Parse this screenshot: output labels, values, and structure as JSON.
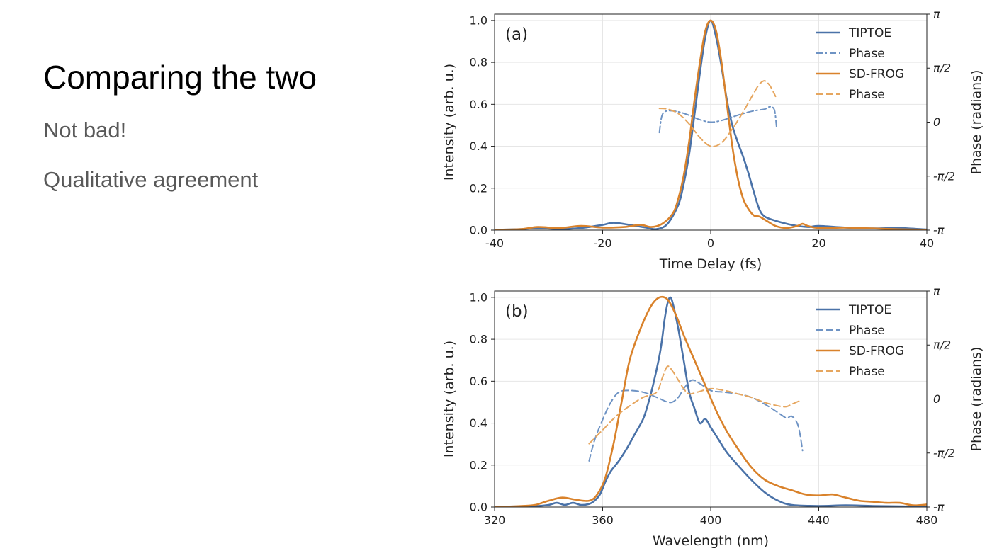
{
  "slide": {
    "title": "Comparing the two",
    "bullets": [
      "Not bad!",
      "Qualitative agreement"
    ]
  },
  "colors": {
    "tiptoe": "#4a72a8",
    "tiptoe_phase": "#6e93c4",
    "sdfrog": "#d9822b",
    "sdfrog_phase": "#e6a65f",
    "grid": "#e6e6e6"
  },
  "chart_data": [
    {
      "type": "line",
      "panel_label": "(a)",
      "xlabel": "Time Delay (fs)",
      "ylabel": "Intensity (arb. u.)",
      "y2label": "Phase (radians)",
      "xlim": [
        -40,
        40
      ],
      "ylim": [
        0,
        1.03
      ],
      "y2lim": [
        -3.14159,
        3.14159
      ],
      "xticks": [
        -40,
        -20,
        0,
        20,
        40
      ],
      "xtick_labels": [
        "-40",
        "-20",
        "0",
        "20",
        "40"
      ],
      "yticks": [
        0,
        0.2,
        0.4,
        0.6,
        0.8,
        1.0
      ],
      "ytick_labels": [
        "0.0",
        "0.2",
        "0.4",
        "0.6",
        "0.8",
        "1.0"
      ],
      "y2ticks": [
        -3.14159,
        -1.5708,
        0,
        1.5708,
        3.14159
      ],
      "y2tick_labels": [
        "-π",
        "-π/2",
        "0",
        "π/2",
        "π"
      ],
      "grid": true,
      "legend": "top-right",
      "series": [
        {
          "name": "TIPTOE",
          "axis": "left",
          "style": "solid",
          "color_key": "tiptoe",
          "x": [
            -40,
            -35,
            -32,
            -28,
            -24,
            -20,
            -18,
            -15,
            -12,
            -10,
            -8,
            -6,
            -5,
            -4,
            -3,
            -2,
            -1,
            0,
            1,
            2,
            3,
            4,
            5,
            6,
            7,
            8,
            9,
            10,
            12,
            15,
            18,
            20,
            25,
            30,
            35,
            40
          ],
          "y": [
            0.002,
            0.005,
            0.01,
            0.005,
            0.01,
            0.025,
            0.035,
            0.025,
            0.012,
            0.005,
            0.03,
            0.12,
            0.22,
            0.36,
            0.55,
            0.75,
            0.92,
            1.0,
            0.92,
            0.78,
            0.62,
            0.5,
            0.42,
            0.35,
            0.27,
            0.18,
            0.1,
            0.065,
            0.045,
            0.025,
            0.015,
            0.02,
            0.012,
            0.008,
            0.01,
            0.003
          ]
        },
        {
          "name": "Phase",
          "axis": "right",
          "style": "dashdot",
          "color_key": "tiptoe_phase",
          "x": [
            -9.5,
            -9,
            -8,
            -6,
            -4,
            -2,
            0,
            2,
            4,
            6,
            8,
            10,
            11,
            11.8,
            12.2
          ],
          "y": [
            -0.3,
            0.2,
            0.33,
            0.3,
            0.2,
            0.07,
            0,
            0.05,
            0.15,
            0.25,
            0.33,
            0.38,
            0.45,
            0.35,
            -0.15
          ]
        },
        {
          "name": "SD-FROG",
          "axis": "left",
          "style": "solid",
          "color_key": "sdfrog",
          "x": [
            -40,
            -35,
            -32,
            -28,
            -24,
            -20,
            -16,
            -13,
            -11,
            -9,
            -7,
            -6,
            -5,
            -4,
            -3,
            -2,
            -1,
            0,
            1,
            2,
            3,
            4,
            5,
            6,
            7,
            8,
            9,
            10,
            12,
            14,
            16,
            17,
            18,
            20,
            25,
            30,
            35,
            40
          ],
          "y": [
            0.002,
            0.005,
            0.015,
            0.01,
            0.02,
            0.012,
            0.015,
            0.025,
            0.015,
            0.03,
            0.08,
            0.15,
            0.26,
            0.42,
            0.62,
            0.8,
            0.95,
            1.0,
            0.95,
            0.8,
            0.6,
            0.4,
            0.25,
            0.15,
            0.1,
            0.07,
            0.065,
            0.05,
            0.02,
            0.01,
            0.02,
            0.03,
            0.02,
            0.01,
            0.012,
            0.008,
            0.004,
            0.002
          ]
        },
        {
          "name": "Phase",
          "axis": "right",
          "style": "dashed",
          "color_key": "sdfrog_phase",
          "x": [
            -9.5,
            -8,
            -6,
            -4,
            -2,
            0,
            2,
            4,
            6,
            8,
            9,
            10,
            11,
            12
          ],
          "y": [
            0.4,
            0.38,
            0.25,
            -0.05,
            -0.45,
            -0.7,
            -0.6,
            -0.2,
            0.3,
            0.85,
            1.1,
            1.2,
            1.05,
            0.75
          ]
        }
      ]
    },
    {
      "type": "line",
      "panel_label": "(b)",
      "xlabel": "Wavelength (nm)",
      "ylabel": "Intensity (arb. u.)",
      "y2label": "Phase (radians)",
      "xlim": [
        320,
        480
      ],
      "ylim": [
        0,
        1.03
      ],
      "y2lim": [
        -3.14159,
        3.14159
      ],
      "xticks": [
        320,
        360,
        400,
        440,
        480
      ],
      "xtick_labels": [
        "320",
        "360",
        "400",
        "440",
        "480"
      ],
      "yticks": [
        0,
        0.2,
        0.4,
        0.6,
        0.8,
        1.0
      ],
      "ytick_labels": [
        "0.0",
        "0.2",
        "0.4",
        "0.6",
        "0.8",
        "1.0"
      ],
      "y2ticks": [
        -3.14159,
        -1.5708,
        0,
        1.5708,
        3.14159
      ],
      "y2tick_labels": [
        "-π",
        "-π/2",
        "0",
        "π/2",
        "π"
      ],
      "grid": true,
      "legend": "top-right",
      "series": [
        {
          "name": "TIPTOE",
          "axis": "left",
          "style": "solid",
          "color_key": "tiptoe",
          "x": [
            320,
            330,
            335,
            340,
            343,
            346,
            349,
            352,
            355,
            357,
            359,
            361,
            363,
            366,
            369,
            372,
            375,
            377,
            379,
            381,
            382,
            383,
            384,
            385,
            386,
            388,
            390,
            392,
            394,
            396,
            398,
            400,
            403,
            406,
            410,
            415,
            420,
            425,
            430,
            440,
            450,
            460,
            470,
            480
          ],
          "y": [
            0.002,
            0.003,
            0.004,
            0.01,
            0.02,
            0.01,
            0.02,
            0.01,
            0.015,
            0.03,
            0.06,
            0.12,
            0.17,
            0.22,
            0.28,
            0.35,
            0.42,
            0.5,
            0.6,
            0.72,
            0.8,
            0.9,
            0.97,
            1.0,
            0.97,
            0.85,
            0.7,
            0.55,
            0.47,
            0.4,
            0.42,
            0.38,
            0.32,
            0.26,
            0.2,
            0.13,
            0.07,
            0.03,
            0.01,
            0.005,
            0.008,
            0.005,
            0.003,
            0.002
          ]
        },
        {
          "name": "Phase",
          "axis": "right",
          "style": "dashed",
          "color_key": "tiptoe_phase",
          "x": [
            355,
            357,
            360,
            363,
            366,
            370,
            375,
            380,
            385,
            388,
            390,
            393,
            396,
            400,
            405,
            410,
            415,
            420,
            425,
            428,
            430,
            432,
            433,
            434
          ],
          "y": [
            -1.8,
            -1.2,
            -0.6,
            -0.1,
            0.2,
            0.25,
            0.2,
            0.05,
            -0.1,
            0.05,
            0.3,
            0.55,
            0.45,
            0.25,
            0.2,
            0.15,
            0.05,
            -0.15,
            -0.4,
            -0.55,
            -0.5,
            -0.7,
            -1.0,
            -1.5
          ]
        },
        {
          "name": "SD-FROG",
          "axis": "left",
          "style": "solid",
          "color_key": "sdfrog",
          "x": [
            320,
            325,
            330,
            335,
            340,
            345,
            350,
            355,
            358,
            361,
            364,
            367,
            370,
            374,
            378,
            381,
            384,
            387,
            390,
            394,
            398,
            402,
            406,
            410,
            415,
            420,
            425,
            430,
            435,
            440,
            445,
            450,
            455,
            460,
            465,
            470,
            475,
            480
          ],
          "y": [
            0.0,
            0.002,
            0.005,
            0.01,
            0.03,
            0.045,
            0.035,
            0.03,
            0.06,
            0.14,
            0.3,
            0.5,
            0.7,
            0.85,
            0.96,
            1.0,
            0.99,
            0.92,
            0.82,
            0.7,
            0.58,
            0.46,
            0.36,
            0.28,
            0.19,
            0.13,
            0.1,
            0.08,
            0.06,
            0.055,
            0.06,
            0.045,
            0.03,
            0.025,
            0.02,
            0.02,
            0.008,
            0.012
          ]
        },
        {
          "name": "Phase",
          "axis": "right",
          "style": "dashed",
          "color_key": "sdfrog_phase",
          "x": [
            355,
            360,
            365,
            370,
            375,
            380,
            382,
            384,
            386,
            388,
            390,
            392,
            395,
            400,
            405,
            410,
            415,
            420,
            425,
            428,
            430,
            433
          ],
          "y": [
            -1.3,
            -0.9,
            -0.5,
            -0.2,
            0.05,
            0.2,
            0.6,
            0.95,
            0.8,
            0.55,
            0.3,
            0.15,
            0.2,
            0.3,
            0.25,
            0.15,
            0.05,
            -0.1,
            -0.2,
            -0.22,
            -0.15,
            -0.05
          ]
        }
      ]
    }
  ]
}
